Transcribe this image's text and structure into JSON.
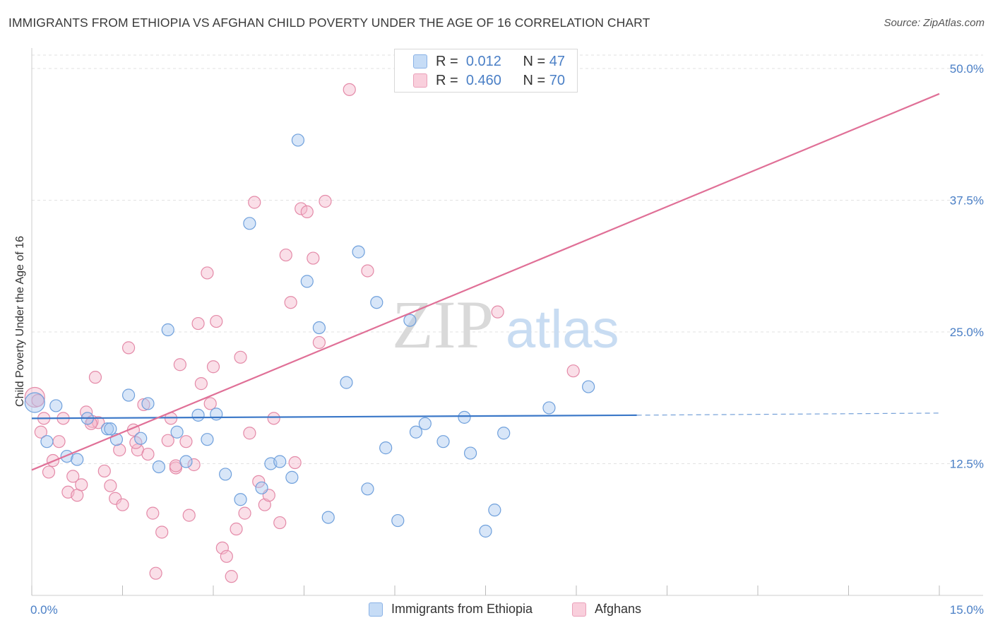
{
  "title": "IMMIGRANTS FROM ETHIOPIA VS AFGHAN CHILD POVERTY UNDER THE AGE OF 16 CORRELATION CHART",
  "source": "Source: ZipAtlas.com",
  "watermark": {
    "zip": "ZIP",
    "atlas": "atlas"
  },
  "legend": {
    "rows": [
      {
        "r_label": "R =",
        "r_value": "0.012",
        "n_label": "N =",
        "n_value": "47",
        "color": "#a8c8f0"
      },
      {
        "r_label": "R =",
        "r_value": "0.460",
        "n_label": "N =",
        "n_value": "70",
        "color": "#f5b8cc"
      }
    ]
  },
  "bottom_legend": [
    {
      "label": "Immigrants from Ethiopia",
      "color": "#a8c8f0"
    },
    {
      "label": "Afghans",
      "color": "#f5b8cc"
    }
  ],
  "chart_data": {
    "type": "scatter",
    "title": "IMMIGRANTS FROM ETHIOPIA VS AFGHAN CHILD POVERTY UNDER THE AGE OF 16 CORRELATION CHART",
    "xlabel": "",
    "ylabel": "Child Poverty Under the Age of 16",
    "xlim": [
      0,
      15
    ],
    "ylim": [
      0,
      50
    ],
    "x_tick_labels": [
      "0.0%",
      "15.0%"
    ],
    "y_ticks": [
      12.5,
      25.0,
      37.5,
      50.0
    ],
    "y_tick_labels": [
      "12.5%",
      "25.0%",
      "37.5%",
      "50.0%"
    ],
    "series": [
      {
        "name": "Immigrants from Ethiopia",
        "color": "#a8c8f0",
        "stroke": "#6fa0dc",
        "trend": {
          "x0": 0,
          "y0": 16.8,
          "x1": 10.0,
          "y1": 17.1,
          "dash_to": 15,
          "dash_y": 17.3,
          "color": "#3b78c8"
        },
        "points": [
          [
            0.05,
            18.3
          ],
          [
            0.4,
            18.0
          ],
          [
            0.25,
            14.6
          ],
          [
            0.58,
            13.2
          ],
          [
            0.75,
            12.9
          ],
          [
            0.92,
            16.8
          ],
          [
            1.25,
            15.8
          ],
          [
            1.4,
            14.8
          ],
          [
            1.6,
            19.0
          ],
          [
            1.8,
            14.9
          ],
          [
            1.92,
            18.2
          ],
          [
            2.1,
            12.2
          ],
          [
            2.25,
            25.2
          ],
          [
            2.4,
            15.5
          ],
          [
            2.55,
            12.7
          ],
          [
            2.75,
            17.1
          ],
          [
            2.9,
            14.8
          ],
          [
            3.05,
            17.2
          ],
          [
            3.2,
            11.5
          ],
          [
            3.45,
            9.1
          ],
          [
            3.6,
            35.3
          ],
          [
            3.8,
            10.2
          ],
          [
            3.95,
            12.5
          ],
          [
            4.1,
            12.7
          ],
          [
            4.3,
            11.2
          ],
          [
            4.4,
            43.2
          ],
          [
            4.55,
            29.8
          ],
          [
            4.75,
            25.4
          ],
          [
            4.9,
            7.4
          ],
          [
            5.2,
            20.2
          ],
          [
            5.4,
            32.6
          ],
          [
            5.55,
            10.1
          ],
          [
            5.7,
            27.8
          ],
          [
            5.85,
            14.0
          ],
          [
            6.05,
            7.1
          ],
          [
            6.25,
            26.1
          ],
          [
            6.35,
            15.5
          ],
          [
            6.5,
            16.3
          ],
          [
            6.8,
            14.6
          ],
          [
            7.15,
            16.9
          ],
          [
            7.25,
            13.5
          ],
          [
            7.5,
            6.1
          ],
          [
            7.65,
            8.1
          ],
          [
            7.8,
            15.4
          ],
          [
            8.55,
            17.8
          ],
          [
            9.2,
            19.8
          ],
          [
            1.3,
            15.8
          ]
        ]
      },
      {
        "name": "Afghans",
        "color": "#f5b8cc",
        "stroke": "#e48aa8",
        "trend": {
          "x0": 0,
          "y0": 11.9,
          "x1": 15,
          "y1": 47.6,
          "color": "#e07097"
        },
        "points": [
          [
            0.05,
            18.8
          ],
          [
            0.1,
            18.5
          ],
          [
            0.15,
            15.5
          ],
          [
            0.2,
            16.8
          ],
          [
            0.28,
            11.7
          ],
          [
            0.35,
            12.8
          ],
          [
            0.45,
            14.6
          ],
          [
            0.52,
            16.8
          ],
          [
            0.6,
            9.8
          ],
          [
            0.68,
            11.3
          ],
          [
            0.75,
            9.5
          ],
          [
            0.82,
            10.5
          ],
          [
            0.9,
            17.4
          ],
          [
            1.0,
            16.5
          ],
          [
            1.05,
            20.7
          ],
          [
            1.1,
            16.4
          ],
          [
            1.2,
            11.8
          ],
          [
            1.3,
            10.4
          ],
          [
            1.38,
            9.2
          ],
          [
            1.45,
            13.8
          ],
          [
            1.5,
            8.6
          ],
          [
            1.6,
            23.5
          ],
          [
            1.68,
            15.7
          ],
          [
            1.75,
            13.8
          ],
          [
            1.85,
            18.1
          ],
          [
            1.92,
            13.4
          ],
          [
            2.0,
            7.8
          ],
          [
            2.05,
            2.1
          ],
          [
            2.15,
            6.0
          ],
          [
            2.25,
            14.7
          ],
          [
            2.3,
            16.8
          ],
          [
            2.38,
            12.1
          ],
          [
            2.45,
            21.9
          ],
          [
            2.55,
            14.6
          ],
          [
            2.6,
            7.6
          ],
          [
            2.68,
            12.4
          ],
          [
            2.75,
            25.8
          ],
          [
            2.8,
            20.1
          ],
          [
            2.9,
            30.6
          ],
          [
            2.95,
            18.2
          ],
          [
            3.0,
            21.7
          ],
          [
            3.05,
            26.0
          ],
          [
            3.15,
            4.5
          ],
          [
            3.22,
            3.7
          ],
          [
            3.3,
            1.8
          ],
          [
            3.38,
            6.3
          ],
          [
            3.45,
            22.6
          ],
          [
            3.52,
            7.8
          ],
          [
            3.6,
            15.4
          ],
          [
            3.68,
            37.3
          ],
          [
            3.75,
            10.8
          ],
          [
            3.85,
            8.6
          ],
          [
            3.92,
            9.5
          ],
          [
            4.0,
            16.8
          ],
          [
            4.1,
            6.9
          ],
          [
            4.2,
            32.3
          ],
          [
            4.28,
            27.8
          ],
          [
            4.35,
            12.6
          ],
          [
            4.45,
            36.7
          ],
          [
            4.55,
            36.4
          ],
          [
            4.65,
            32.0
          ],
          [
            4.75,
            24.0
          ],
          [
            4.85,
            37.4
          ],
          [
            5.25,
            48.0
          ],
          [
            5.55,
            30.8
          ],
          [
            7.7,
            26.9
          ],
          [
            8.95,
            21.3
          ],
          [
            2.38,
            12.3
          ],
          [
            1.72,
            14.5
          ],
          [
            0.98,
            16.3
          ]
        ]
      }
    ]
  }
}
